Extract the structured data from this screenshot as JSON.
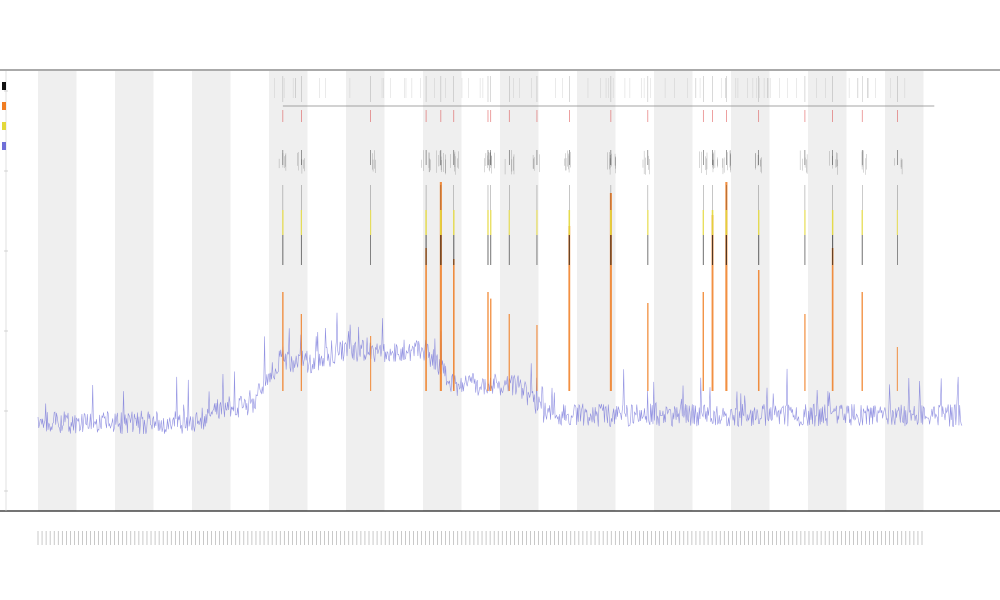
{
  "chart_data": {
    "type": "line",
    "title": "",
    "subtitle_lines": [
      "",
      ""
    ],
    "xlabel": "",
    "ylabel": "",
    "grid": true,
    "banded_background": true,
    "band_count": 24,
    "legend_placement": "left",
    "x_count": 1200,
    "background_series": {
      "name": "",
      "color": "#6f6fd8",
      "baseline_segments": [
        {
          "from": 0.0,
          "to": 0.2,
          "level": 0.14
        },
        {
          "from": 0.2,
          "to": 0.26,
          "level": 0.18
        },
        {
          "from": 0.26,
          "to": 0.33,
          "level": 0.3
        },
        {
          "from": 0.33,
          "to": 0.45,
          "level": 0.33
        },
        {
          "from": 0.45,
          "to": 0.55,
          "level": 0.24
        },
        {
          "from": 0.55,
          "to": 1.0,
          "level": 0.16
        }
      ]
    },
    "event_spikes": {
      "colors": {
        "orange": "#f07d22",
        "yellow": "#e3d83a",
        "black": "#111111",
        "red": "#d93b3b",
        "gray": "#7a7a7a"
      },
      "x_positions": [
        0.265,
        0.285,
        0.36,
        0.42,
        0.436,
        0.45,
        0.487,
        0.49,
        0.51,
        0.54,
        0.575,
        0.62,
        0.66,
        0.72,
        0.73,
        0.745,
        0.78,
        0.83,
        0.86,
        0.892,
        0.93
      ],
      "spike_strength": [
        0.45,
        0.35,
        0.25,
        0.65,
        0.95,
        0.6,
        0.45,
        0.42,
        0.35,
        0.3,
        0.75,
        0.9,
        0.4,
        0.45,
        0.8,
        0.95,
        0.55,
        0.35,
        0.65,
        0.45,
        0.2
      ]
    },
    "tick_labels_x": {
      "count": 220
    },
    "legend_entries": [
      {
        "label": "",
        "color": "#111111"
      },
      {
        "label": "",
        "color": "#f07d22"
      },
      {
        "label": "",
        "color": "#e3d83a"
      },
      {
        "label": "",
        "color": "#6f6fd8"
      }
    ]
  }
}
